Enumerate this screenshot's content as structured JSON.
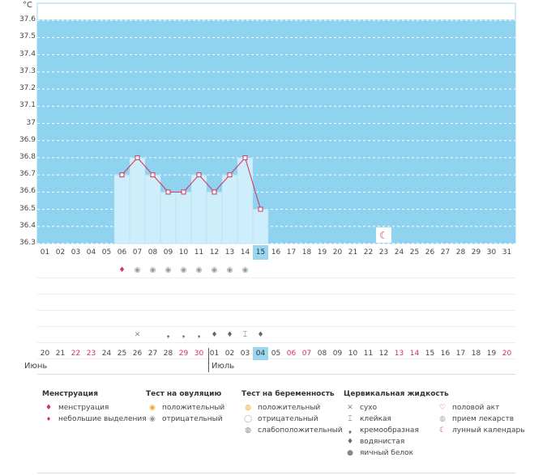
{
  "chart_data": {
    "type": "line",
    "ylabel": "°C",
    "ylim": [
      36.3,
      37.7
    ],
    "yticks": [
      "37.6",
      "37.5",
      "37.4",
      "37.3",
      "37.2",
      "37.1",
      "37",
      "36.9",
      "36.8",
      "36.7",
      "36.6",
      "36.5",
      "36.4",
      "36.3"
    ],
    "x": [
      "01",
      "02",
      "03",
      "04",
      "05",
      "06",
      "07",
      "08",
      "09",
      "10",
      "11",
      "12",
      "13",
      "14",
      "15",
      "16",
      "17",
      "18",
      "19",
      "20",
      "21",
      "22",
      "23",
      "24",
      "25",
      "26",
      "27",
      "28",
      "29",
      "30",
      "31"
    ],
    "series": [
      {
        "points": [
          {
            "x": "06",
            "y": 36.7
          },
          {
            "x": "07",
            "y": 36.8
          },
          {
            "x": "08",
            "y": 36.7
          },
          {
            "x": "09",
            "y": 36.6
          },
          {
            "x": "10",
            "y": 36.6
          },
          {
            "x": "11",
            "y": 36.7
          },
          {
            "x": "12",
            "y": 36.6
          },
          {
            "x": "13",
            "y": 36.7
          },
          {
            "x": "14",
            "y": 36.8
          },
          {
            "x": "15",
            "y": 36.5
          }
        ]
      }
    ],
    "highlighted_day": "15",
    "moon_marker_day": "23"
  },
  "calendar": {
    "dates": [
      "20",
      "21",
      "22",
      "23",
      "24",
      "25",
      "26",
      "27",
      "28",
      "29",
      "30",
      "01",
      "02",
      "03",
      "04",
      "05",
      "06",
      "07",
      "08",
      "09",
      "10",
      "11",
      "12",
      "13",
      "14",
      "15",
      "16",
      "17",
      "18",
      "19",
      "20"
    ],
    "weekend_indexes": [
      2,
      3,
      9,
      10,
      16,
      17,
      23,
      24,
      30
    ],
    "today_index": 14,
    "month_june": "Июнь",
    "month_july": "Июль"
  },
  "legend": {
    "menstruation": {
      "title": "Менструация",
      "items": [
        "менструация",
        "небольшие выделения"
      ]
    },
    "ovulation": {
      "title": "Тест на овуляцию",
      "items": [
        "положительный",
        "отрицательный"
      ]
    },
    "pregnancy": {
      "title": "Тест на беременность",
      "items": [
        "положительный",
        "отрицательный",
        "слабоположительный"
      ]
    },
    "cervical": {
      "title": "Цервикальная жидкость",
      "items": [
        "сухо",
        "клейкая",
        "кремообразная",
        "водянистая",
        "яичный белок"
      ]
    },
    "other": {
      "items": [
        "половой акт",
        "прием лекарств",
        "лунный календарь"
      ]
    }
  },
  "colors": {
    "plot_bg": "#8fd3f0",
    "bar": "#cfeefb",
    "line": "#d2325a",
    "weekend": "#d2325a",
    "today": "#9bd6ef"
  }
}
